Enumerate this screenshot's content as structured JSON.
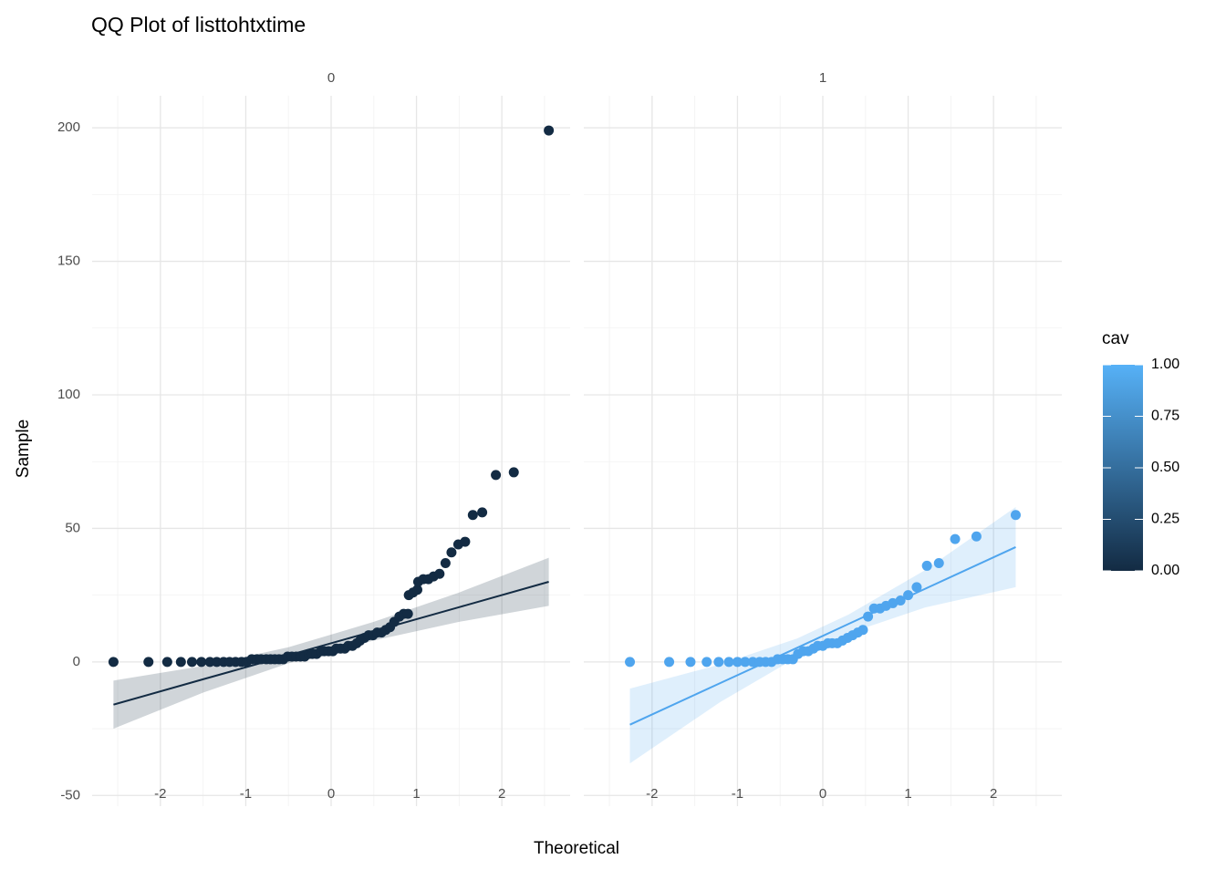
{
  "chart_data": {
    "type": "qq",
    "title": "QQ Plot of listtohtxtime",
    "x_label": "Theoretical",
    "y_label": "Sample",
    "xlim": [
      -2.8,
      2.8
    ],
    "ylim": [
      -54,
      212
    ],
    "xticks": [
      -2,
      -1,
      0,
      1,
      2
    ],
    "xminor": [
      -2.5,
      -1.5,
      -0.5,
      0.5,
      1.5,
      2.5
    ],
    "yticks": [
      -50,
      0,
      50,
      100,
      150,
      200
    ],
    "yminor": [
      -25,
      25,
      75,
      125,
      175
    ],
    "grid": true,
    "facets": [
      {
        "label": "0",
        "color": "#132b43",
        "x": [
          -2.55,
          -2.14,
          -1.92,
          -1.76,
          -1.63,
          -1.52,
          -1.42,
          -1.34,
          -1.26,
          -1.19,
          -1.12,
          -1.05,
          -0.99,
          -0.93,
          -0.87,
          -0.82,
          -0.76,
          -0.71,
          -0.66,
          -0.61,
          -0.56,
          -0.51,
          -0.46,
          -0.41,
          -0.36,
          -0.31,
          -0.26,
          -0.22,
          -0.17,
          -0.12,
          -0.08,
          -0.03,
          0.02,
          0.06,
          0.11,
          0.16,
          0.2,
          0.25,
          0.3,
          0.34,
          0.39,
          0.44,
          0.49,
          0.54,
          0.59,
          0.64,
          0.69,
          0.74,
          0.8,
          0.85,
          0.9,
          0.91,
          0.96,
          1.01,
          1.02,
          1.08,
          1.14,
          1.2,
          1.27,
          1.34,
          1.41,
          1.49,
          1.57,
          1.66,
          1.77,
          1.93,
          2.14,
          2.55
        ],
        "y": [
          0,
          0,
          0,
          0,
          0,
          0,
          0,
          0,
          0,
          0,
          0,
          0,
          0,
          1,
          1,
          1,
          1,
          1,
          1,
          1,
          1,
          2,
          2,
          2,
          2,
          2,
          3,
          3,
          3,
          4,
          4,
          4,
          4,
          5,
          5,
          5,
          6,
          6,
          7,
          8,
          9,
          10,
          10,
          11,
          11,
          12,
          13,
          15,
          17,
          18,
          18,
          25,
          26,
          27,
          30,
          31,
          31,
          32,
          33,
          37,
          41,
          44,
          45,
          55,
          56,
          70,
          71,
          199
        ],
        "fit_x": [
          -2.55,
          -1.5,
          -0.5,
          0.5,
          1.5,
          2.55
        ],
        "fit_y": [
          -16,
          -6.5,
          2.5,
          11.5,
          20.5,
          30
        ],
        "band_lower": [
          -25,
          -11.5,
          -0.5,
          8,
          15,
          21
        ],
        "band_upper": [
          -7,
          -1.5,
          5.5,
          15,
          26,
          39
        ]
      },
      {
        "label": "1",
        "color": "#4fa5ee",
        "x": [
          -2.26,
          -1.8,
          -1.55,
          -1.36,
          -1.22,
          -1.1,
          -1.0,
          -0.91,
          -0.82,
          -0.74,
          -0.67,
          -0.6,
          -0.53,
          -0.47,
          -0.41,
          -0.35,
          -0.29,
          -0.23,
          -0.17,
          -0.11,
          -0.06,
          0.0,
          0.06,
          0.11,
          0.17,
          0.23,
          0.29,
          0.35,
          0.41,
          0.47,
          0.53,
          0.6,
          0.67,
          0.74,
          0.82,
          0.91,
          1.0,
          1.1,
          1.22,
          1.36,
          1.55,
          1.8,
          2.26
        ],
        "y": [
          0,
          0,
          0,
          0,
          0,
          0,
          0,
          0,
          0,
          0,
          0,
          0,
          1,
          1,
          1,
          1,
          3,
          4,
          4,
          5,
          6,
          6,
          7,
          7,
          7,
          8,
          9,
          10,
          11,
          12,
          17,
          20,
          20,
          21,
          22,
          23,
          25,
          28,
          36,
          37,
          46,
          47,
          55
        ],
        "fit_x": [
          -2.26,
          -1.2,
          -0.3,
          0.3,
          1.2,
          2.26
        ],
        "fit_y": [
          -23.5,
          -7.9,
          5.3,
          14.2,
          27.4,
          43
        ],
        "band_lower": [
          -38,
          -15,
          1.8,
          10.7,
          20.4,
          28
        ],
        "band_upper": [
          -10,
          -0.9,
          8.8,
          17.7,
          34.4,
          58
        ]
      }
    ],
    "legend": {
      "title": "cav",
      "low": "#132b43",
      "high": "#56b1f7",
      "ticks": [
        {
          "value": 0,
          "label": "0.00"
        },
        {
          "value": 0.25,
          "label": "0.25"
        },
        {
          "value": 0.5,
          "label": "0.50"
        },
        {
          "value": 0.75,
          "label": "0.75"
        },
        {
          "value": 1,
          "label": "1.00"
        }
      ]
    }
  }
}
